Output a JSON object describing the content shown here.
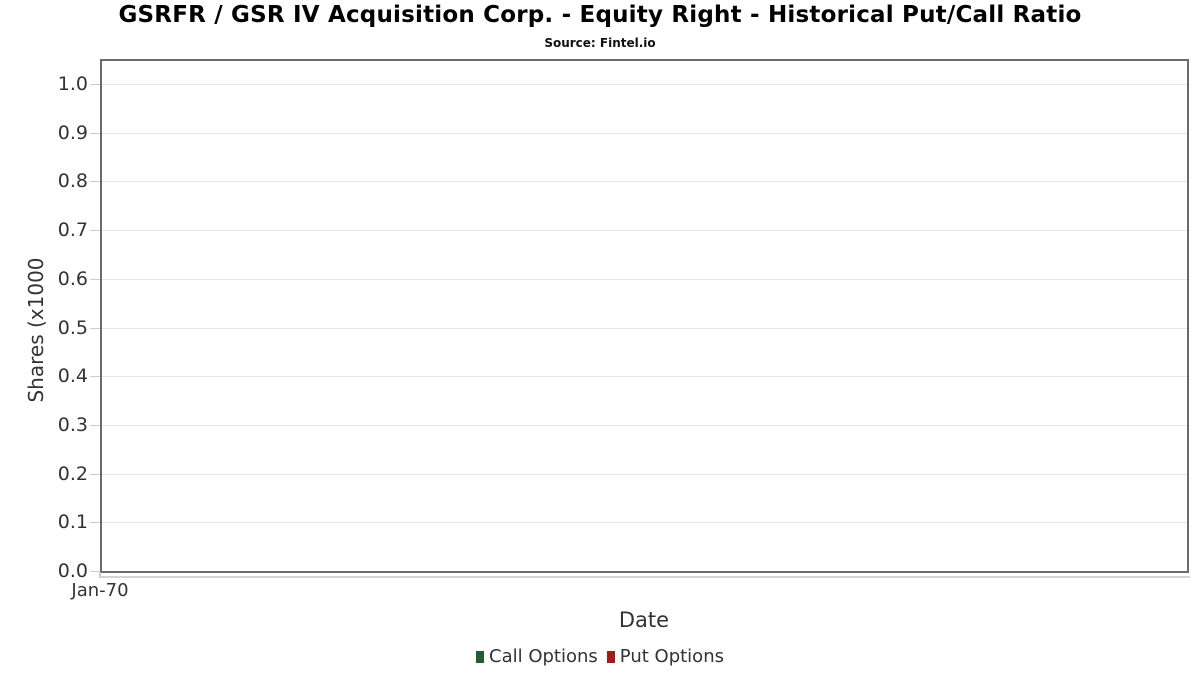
{
  "header": {
    "title": "GSRFR / GSR IV Acquisition Corp. - Equity Right - Historical Put/Call Ratio",
    "subtitle": "Source: Fintel.io"
  },
  "chart_data": {
    "type": "bar",
    "title": "GSRFR / GSR IV Acquisition Corp. - Equity Right - Historical Put/Call Ratio",
    "subtitle": "Source: Fintel.io",
    "xlabel": "Date",
    "ylabel": "Shares (x1000",
    "ylim": [
      0.0,
      1.05
    ],
    "yticks": [
      0.0,
      0.1,
      0.2,
      0.3,
      0.4,
      0.5,
      0.6,
      0.7,
      0.8,
      0.9,
      1.0
    ],
    "ytick_labels": [
      "0.0",
      "0.1",
      "0.2",
      "0.3",
      "0.4",
      "0.5",
      "0.6",
      "0.7",
      "0.8",
      "0.9",
      "1.0"
    ],
    "xticklabels": [
      "Jan-70"
    ],
    "categories": [
      "Jan-70"
    ],
    "grid": "horizontal",
    "legend_position": "bottom",
    "series": [
      {
        "name": "Call Options",
        "color": "#265c34",
        "values": []
      },
      {
        "name": "Put Options",
        "color": "#a61a1a",
        "values": []
      }
    ],
    "colors": {
      "plot_border": "#6b6b6b",
      "gridline": "#e6e6e6",
      "tick": "#cccccc",
      "axis_text": "#333333",
      "title_text": "#000000"
    }
  }
}
